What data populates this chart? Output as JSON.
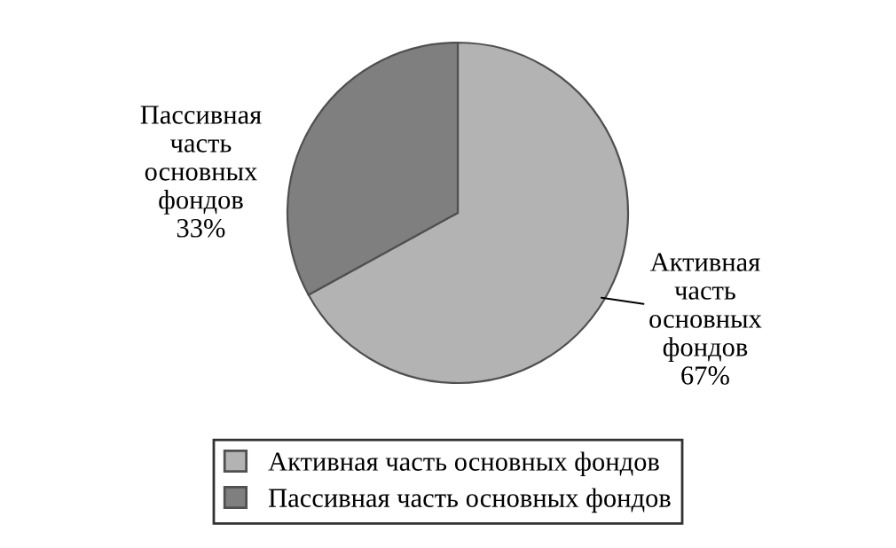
{
  "chart_data": {
    "type": "pie",
    "categories": [
      "Активная часть основных фондов",
      "Пассивная часть основных фондов"
    ],
    "values": [
      67,
      33
    ],
    "value_labels": [
      "67%",
      "33%"
    ],
    "colors": [
      "#b3b3b3",
      "#7f7f7f"
    ],
    "legend": "bottom"
  }
}
